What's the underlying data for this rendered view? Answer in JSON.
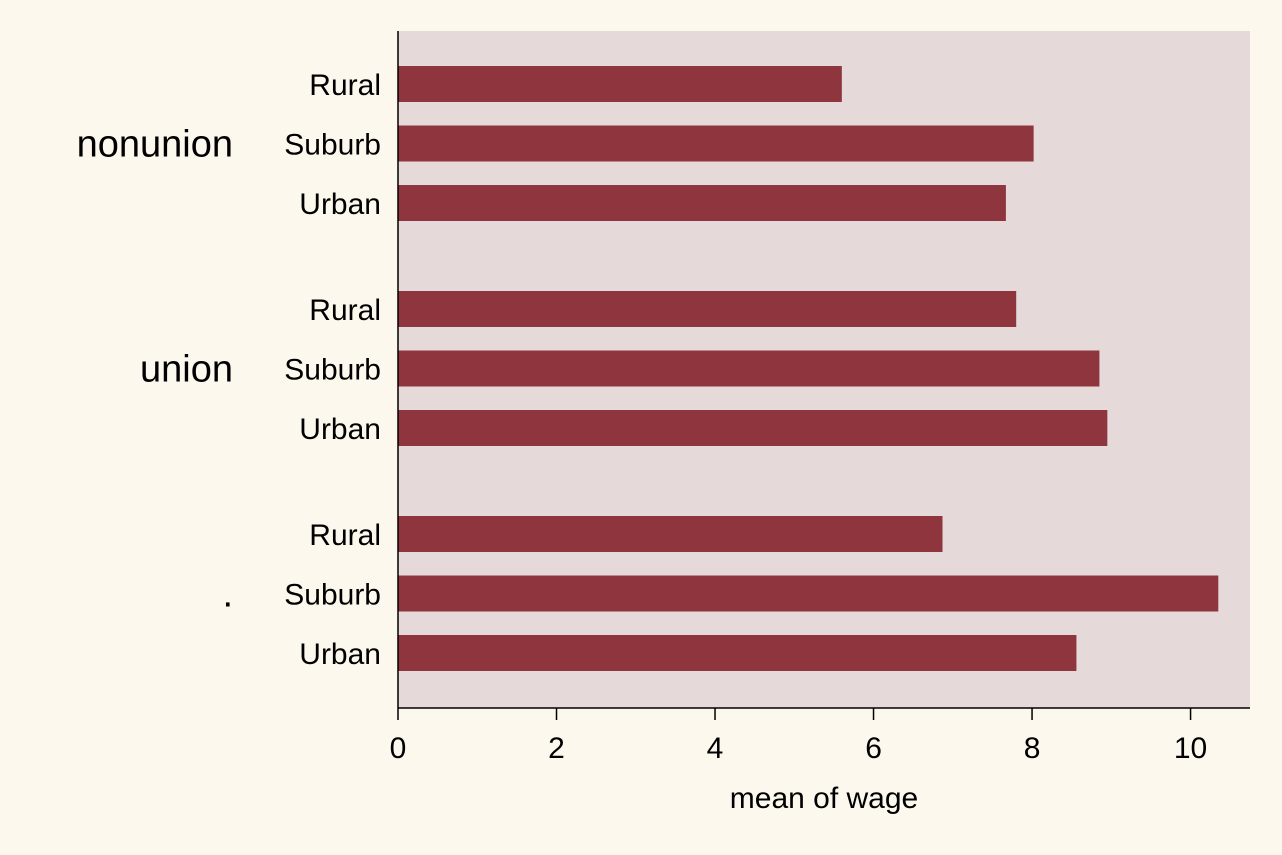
{
  "chart_data": {
    "type": "bar",
    "orientation": "horizontal",
    "groups": [
      {
        "label": "nonunion",
        "categories": [
          "Rural",
          "Suburb",
          "Urban"
        ],
        "values": [
          5.6,
          8.02,
          7.67
        ]
      },
      {
        "label": "union",
        "categories": [
          "Rural",
          "Suburb",
          "Urban"
        ],
        "values": [
          7.8,
          8.85,
          8.95
        ]
      },
      {
        "label": ".",
        "categories": [
          "Rural",
          "Suburb",
          "Urban"
        ],
        "values": [
          6.87,
          10.35,
          8.56
        ]
      }
    ],
    "xlabel": "mean of wage",
    "xlim": [
      0,
      10.75
    ],
    "xticks": [
      0,
      2,
      4,
      6,
      8,
      10
    ],
    "grid": false,
    "colors": {
      "bar": "#8f353d",
      "plot_background": "#e5dad9",
      "page_background": "#fdf8ee",
      "axis": "#000000"
    }
  }
}
